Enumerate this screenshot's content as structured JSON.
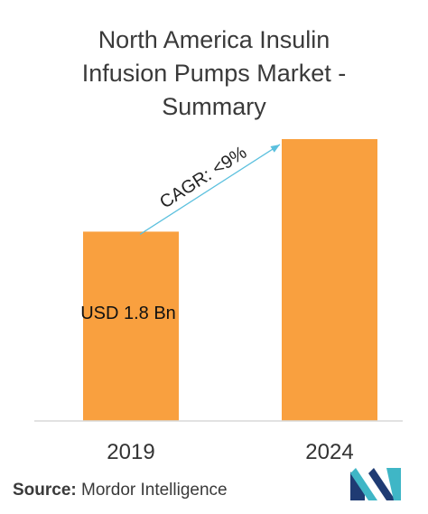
{
  "title_lines": [
    "North America Insulin",
    "Infusion Pumps Market -",
    "Summary"
  ],
  "chart_data": {
    "type": "bar",
    "categories": [
      "2019",
      "2024"
    ],
    "values": [
      1.8,
      2.68
    ],
    "bar_labels": [
      "USD 1.8 Bn",
      ""
    ],
    "annotation": "CAGR: <9%",
    "title": "North America Insulin Infusion Pumps Market - Summary",
    "xlabel": "",
    "ylabel": "",
    "ylim": [
      0,
      2.8
    ],
    "grid": false,
    "legend": "none",
    "bar_color": "#F9A03F",
    "arrow_color": "#5BC0DE"
  },
  "source": {
    "label": "Source:",
    "text": "Mordor Intelligence"
  },
  "logo": {
    "name": "mordor-intelligence-logo",
    "colors": [
      "#1f3b73",
      "#3fb6c6"
    ]
  }
}
